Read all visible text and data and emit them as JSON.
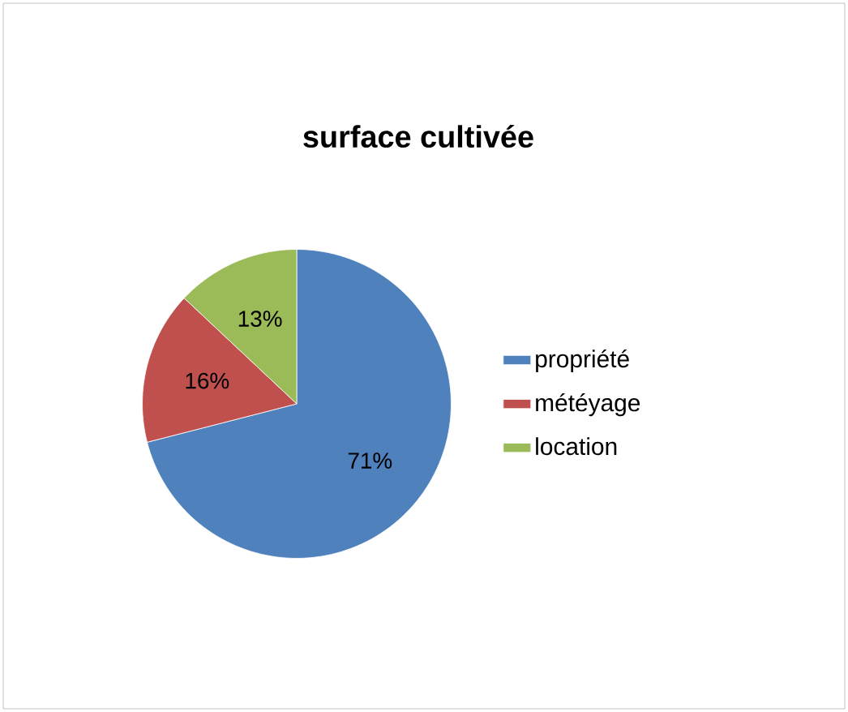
{
  "chart_data": {
    "type": "pie",
    "title": "surface cultivée",
    "categories": [
      "propriété",
      "météyage",
      "location"
    ],
    "values": [
      71,
      16,
      13
    ],
    "colors": [
      "#4f81bd",
      "#c0504d",
      "#9bbb59"
    ],
    "value_labels": [
      "71%",
      "16%",
      "13%"
    ],
    "legend": "right"
  }
}
